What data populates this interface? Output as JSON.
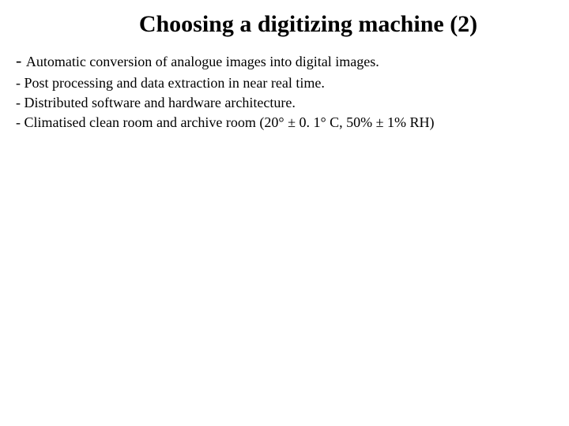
{
  "slide": {
    "title": "Choosing a digitizing machine  (2)",
    "bullets": [
      "Automatic conversion of analogue images into digital images.",
      "- Post processing and data extraction in near real time.",
      "- Distributed software and hardware architecture.",
      "- Climatised clean room and archive room (20° ± 0. 1° C, 50% ± 1% RH)"
    ]
  },
  "colors": {
    "background": "#ffffff",
    "text": "#000000"
  },
  "typography": {
    "title_fontsize": 30,
    "body_fontsize": 18,
    "font_family": "Times New Roman"
  }
}
